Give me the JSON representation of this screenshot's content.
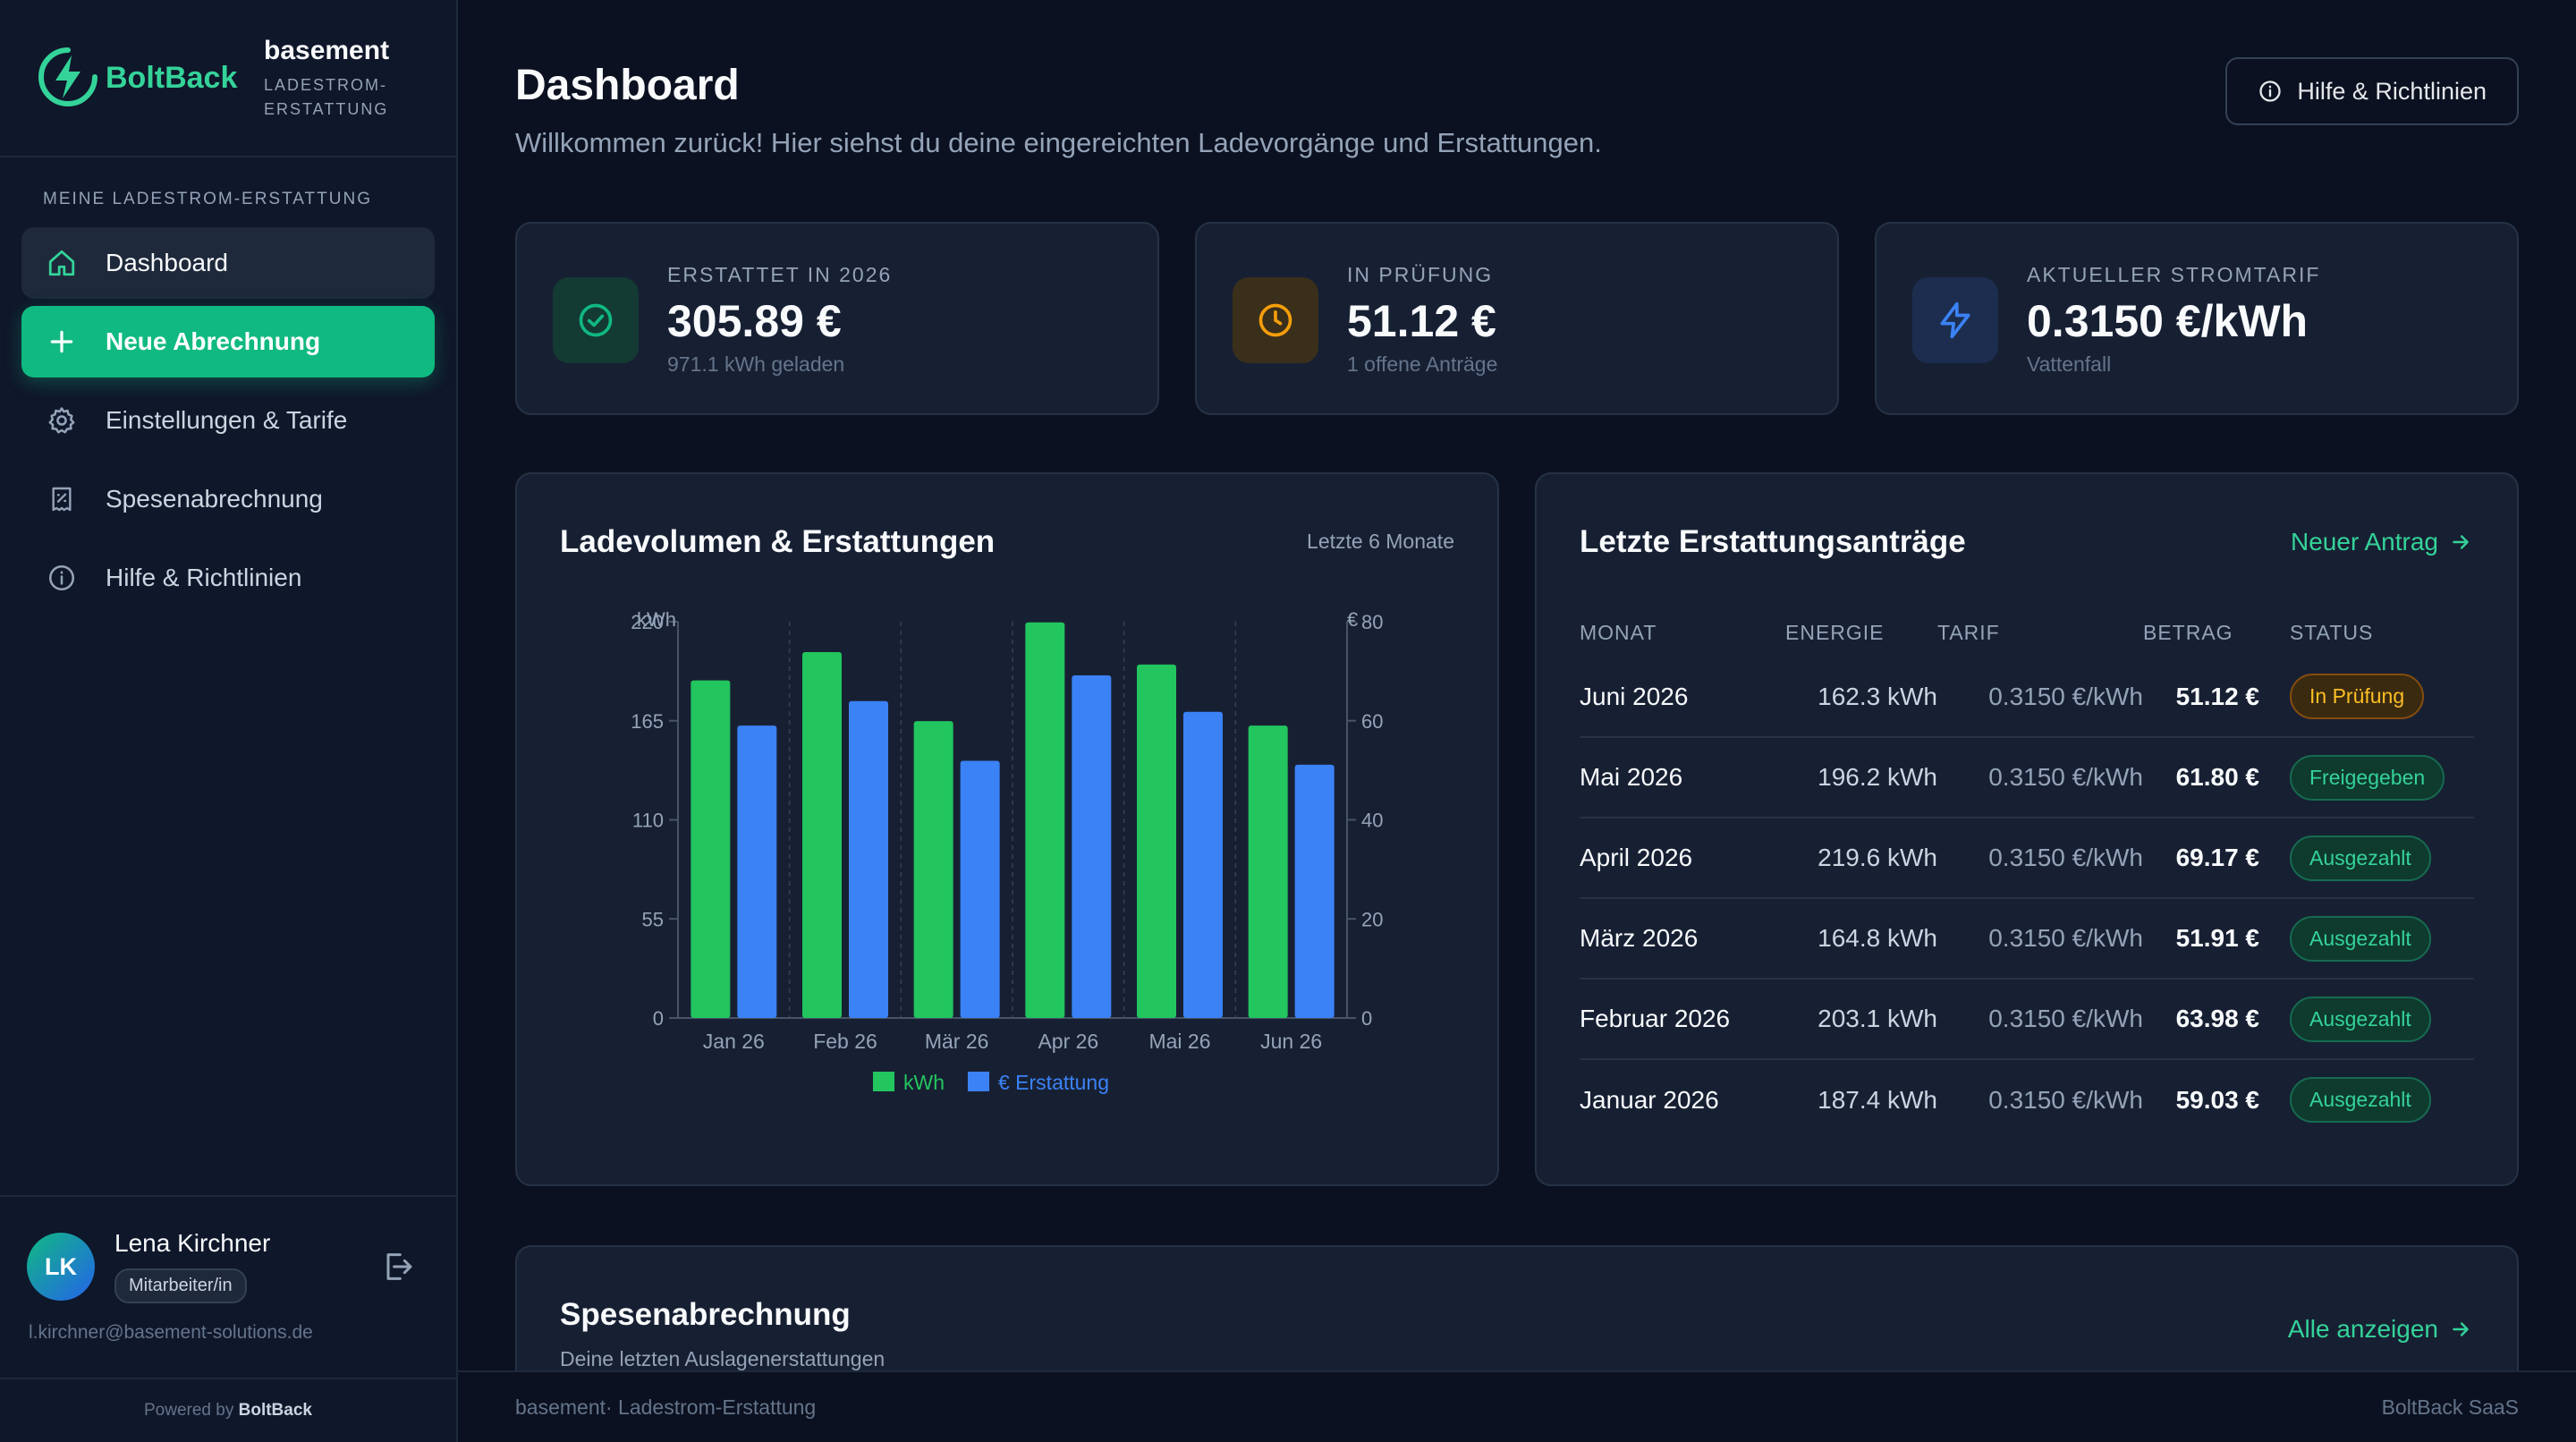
{
  "brand": {
    "name": "BoltBack",
    "tenant": "basement",
    "subtitle": "LADESTROM-ERSTATTUNG",
    "accent": "#10b981"
  },
  "sidebar": {
    "section_title": "MEINE LADESTROM-ERSTATTUNG",
    "items": [
      {
        "label": "Dashboard",
        "icon": "home-icon",
        "state": "active"
      },
      {
        "label": "Neue Abrechnung",
        "icon": "plus-icon",
        "state": "primary"
      },
      {
        "label": "Einstellungen & Tarife",
        "icon": "gear-icon",
        "state": "default"
      },
      {
        "label": "Spesenabrechnung",
        "icon": "receipt-icon",
        "state": "default"
      },
      {
        "label": "Hilfe & Richtlinien",
        "icon": "info-icon",
        "state": "default"
      }
    ],
    "user": {
      "initials": "LK",
      "name": "Lena Kirchner",
      "role": "Mitarbeiter/in",
      "email": "l.kirchner@basement-solutions.de"
    },
    "powered_prefix": "Powered by",
    "powered_brand": "BoltBack"
  },
  "header": {
    "title": "Dashboard",
    "subtitle": "Willkommen zurück! Hier siehst du deine eingereichten Ladevorgänge und Erstattungen.",
    "help_button": "Hilfe & Richtlinien"
  },
  "stats": [
    {
      "label": "ERSTATTET IN 2026",
      "value": "305.89 €",
      "sub": "971.1 kWh geladen",
      "icon": "check-circle-icon",
      "color": "#10b981"
    },
    {
      "label": "IN PRÜFUNG",
      "value": "51.12 €",
      "sub": "1 offene Anträge",
      "icon": "clock-icon",
      "color": "#f59e0b"
    },
    {
      "label": "AKTUELLER STROMTARIF",
      "value": "0.3150 €/kWh",
      "sub": "Vattenfall",
      "icon": "bolt-icon",
      "color": "#3b82f6"
    }
  ],
  "chart_panel": {
    "title": "Ladevolumen & Erstattungen",
    "range": "Letzte 6 Monate"
  },
  "chart_data": {
    "type": "bar",
    "categories": [
      "Jan 26",
      "Feb 26",
      "Mär 26",
      "Apr 26",
      "Mai 26",
      "Jun 26"
    ],
    "series": [
      {
        "name": "kWh",
        "axis": "left",
        "color": "#22c55e",
        "values": [
          187.4,
          203.1,
          164.8,
          219.6,
          196.2,
          162.3
        ]
      },
      {
        "name": "€ Erstattung",
        "axis": "right",
        "color": "#3b82f6",
        "values": [
          59.03,
          63.98,
          51.91,
          69.17,
          61.8,
          51.12
        ]
      }
    ],
    "y_left": {
      "label": "kWh",
      "ticks": [
        0,
        55,
        110,
        165,
        220
      ],
      "range": [
        0,
        220
      ]
    },
    "y_right": {
      "label": "€",
      "ticks": [
        0,
        20,
        40,
        60,
        80
      ],
      "range": [
        0,
        80
      ]
    },
    "grid": "vertical-dashed",
    "legend": "bottom-center"
  },
  "claims_panel": {
    "title": "Letzte Erstattungsanträge",
    "link": "Neuer Antrag",
    "columns": [
      "MONAT",
      "ENERGIE",
      "TARIF",
      "BETRAG",
      "STATUS"
    ],
    "rows": [
      {
        "month": "Juni 2026",
        "energy": "162.3 kWh",
        "tarif": "0.3150 €/kWh",
        "amount": "51.12 €",
        "status": "In Prüfung",
        "kind": "pending"
      },
      {
        "month": "Mai 2026",
        "energy": "196.2 kWh",
        "tarif": "0.3150 €/kWh",
        "amount": "61.80 €",
        "status": "Freigegeben",
        "kind": "approved"
      },
      {
        "month": "April 2026",
        "energy": "219.6 kWh",
        "tarif": "0.3150 €/kWh",
        "amount": "69.17 €",
        "status": "Ausgezahlt",
        "kind": "approved"
      },
      {
        "month": "März 2026",
        "energy": "164.8 kWh",
        "tarif": "0.3150 €/kWh",
        "amount": "51.91 €",
        "status": "Ausgezahlt",
        "kind": "approved"
      },
      {
        "month": "Februar 2026",
        "energy": "203.1 kWh",
        "tarif": "0.3150 €/kWh",
        "amount": "63.98 €",
        "status": "Ausgezahlt",
        "kind": "approved"
      },
      {
        "month": "Januar 2026",
        "energy": "187.4 kWh",
        "tarif": "0.3150 €/kWh",
        "amount": "59.03 €",
        "status": "Ausgezahlt",
        "kind": "approved"
      }
    ]
  },
  "expense_panel": {
    "title": "Spesenabrechnung",
    "subtitle": "Deine letzten Auslagenerstattungen",
    "link": "Alle anzeigen"
  },
  "footer": {
    "left": "basement· Ladestrom-Erstattung",
    "right": "BoltBack SaaS"
  }
}
